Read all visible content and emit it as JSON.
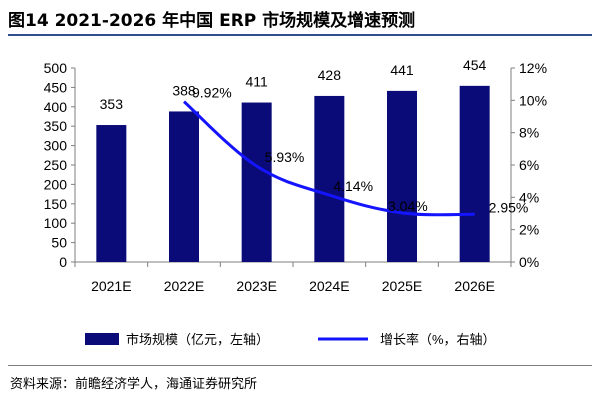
{
  "title": "图14 2021-2026 年中国 ERP 市场规模及增速预测",
  "source": "资料来源：前瞻经济学人，海通证券研究所",
  "colors": {
    "bar": "#0a0a78",
    "line": "#1414ff",
    "axis": "#7f7f7f",
    "title_rule": "#2f4f8f"
  },
  "chart_data": {
    "type": "bar+line",
    "categories": [
      "2021E",
      "2022E",
      "2023E",
      "2024E",
      "2025E",
      "2026E"
    ],
    "series": [
      {
        "name": "市场规模（亿元，左轴）",
        "type": "bar",
        "axis": "left",
        "values": [
          353,
          388,
          411,
          428,
          441,
          454
        ],
        "labels": [
          "353",
          "388",
          "411",
          "428",
          "441",
          "454"
        ]
      },
      {
        "name": "增长率（%，右轴）",
        "type": "line",
        "axis": "right",
        "values": [
          null,
          9.92,
          5.93,
          4.14,
          3.04,
          2.95
        ],
        "labels": [
          null,
          "9.92%",
          "5.93%",
          "4.14%",
          "3.04%",
          "2.95%"
        ]
      }
    ],
    "left_axis": {
      "min": 0,
      "max": 500,
      "step": 50,
      "ticks": [
        "0",
        "50",
        "100",
        "150",
        "200",
        "250",
        "300",
        "350",
        "400",
        "450",
        "500"
      ]
    },
    "right_axis": {
      "min": 0,
      "max": 12,
      "step": 2,
      "ticks": [
        "0%",
        "2%",
        "4%",
        "6%",
        "8%",
        "10%",
        "12%"
      ]
    },
    "legend": {
      "placement": "bottom",
      "items": [
        {
          "label": "市场规模（亿元，左轴）",
          "kind": "bar"
        },
        {
          "label": "增长率（%，右轴）",
          "kind": "line"
        }
      ]
    },
    "grid": false
  }
}
